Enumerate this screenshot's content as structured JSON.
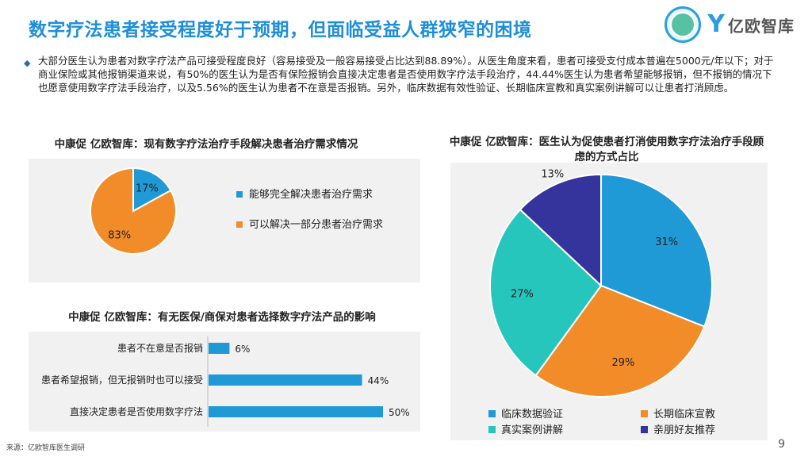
{
  "title": "数字疗法患者接受程度好于预期，但面临受益人群狭窄的困境",
  "brand": {
    "mark": "Y",
    "name": "亿欧智库"
  },
  "intro": "大部分医生认为患者对数字疗法产品可接受程度良好（容易接受及一般容易接受占比达到88.89%）。从医生角度来看，患者可接受支付成本普遍在5000元/年以下；对于商业保险或其他报销渠道来说，有50%的医生认为是否有保险报销会直接决定患者是否使用数字疗法手段治疗，44.44%医生认为患者希望能够报销，但不报销的情况下也愿意使用数字疗法手段治疗，以及5.56%的医生认为患者不在意是否报销。另外，临床数据有效性验证、长期临床宣教和真实案例讲解可以让患者打消顾虑。",
  "footer": "来源：亿欧智库医生调研",
  "page_number": "9",
  "chart_titles": {
    "pie_left": "中康促 亿欧智库：现有数字疗法治疗手段解决患者治疗需求情况",
    "bar": "中康促 亿欧智库：有无医保/商保对患者选择数字疗法产品的影响",
    "pie_right_line1": "中康促 亿欧智库：医生认为促使患者打消使用数字疗法治疗手段顾",
    "pie_right_line2": "虑的方式占比"
  },
  "chart_data": [
    {
      "type": "pie",
      "slices": [
        {
          "label": "能够完全解决患者治疗需求",
          "value": 17,
          "display": "17%",
          "color": "#1f9ad6"
        },
        {
          "label": "可以解决一部分患者治疗需求",
          "value": 83,
          "display": "83%",
          "color": "#f28c28"
        }
      ]
    },
    {
      "type": "bar",
      "orientation": "horizontal",
      "categories": [
        "患者不在意是否报销",
        "患者希望报销，但无报销时也可以接受",
        "直接决定患者是否使用数字疗法"
      ],
      "values": [
        6,
        44,
        50
      ],
      "labels": [
        "6%",
        "44%",
        "50%"
      ],
      "color": "#1f9ad6"
    },
    {
      "type": "pie",
      "slices": [
        {
          "label": "临床数据验证",
          "value": 31,
          "display": "31%",
          "color": "#1f9ad6"
        },
        {
          "label": "长期临床宣教",
          "value": 29,
          "display": "29%",
          "color": "#f28c28"
        },
        {
          "label": "真实案例讲解",
          "value": 27,
          "display": "27%",
          "color": "#26c6bd"
        },
        {
          "label": "亲朋好友推荐",
          "value": 13,
          "display": "13%",
          "color": "#34349c"
        }
      ],
      "legend_position": "bottom"
    }
  ]
}
